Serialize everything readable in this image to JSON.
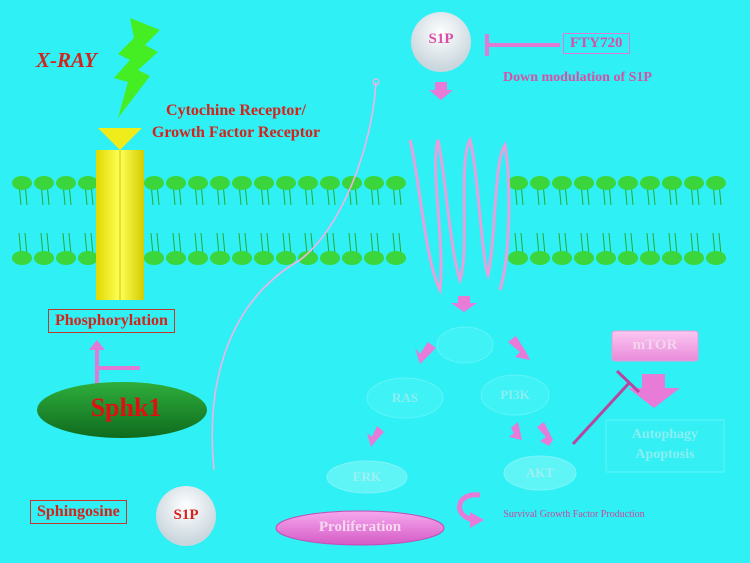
{
  "labels": {
    "xray": "X-RAY",
    "receptor": "Cytochine Receptor/ Growth Factor Receptor",
    "s1p_top": "S1P",
    "fty720": "FTY720",
    "down_modulation": "Down modulation of S1P",
    "phosphorylation": "Phosphorylation",
    "sphk1": "Sphk1",
    "sphingosine": "Sphingosine",
    "s1p_bottom": "S1P",
    "mtor": "mTOR",
    "autophagy": "Autophagy",
    "apoptosis": "Apoptosis",
    "ras": "RAS",
    "pi3k": "PI3K",
    "erk": "ERK",
    "akt": "AKT",
    "proliferation": "Proliferation",
    "survival": "Survival Growth Factor Production"
  },
  "colors": {
    "background": "#2ef0f5",
    "membrane_head": "#3bd63b",
    "receptor": "#f7f21c",
    "sphk1": "#1e8f2e",
    "label_red": "#d4231b",
    "pathway_pink": "#e87ad8",
    "xray_bolt": "#44ee22"
  }
}
